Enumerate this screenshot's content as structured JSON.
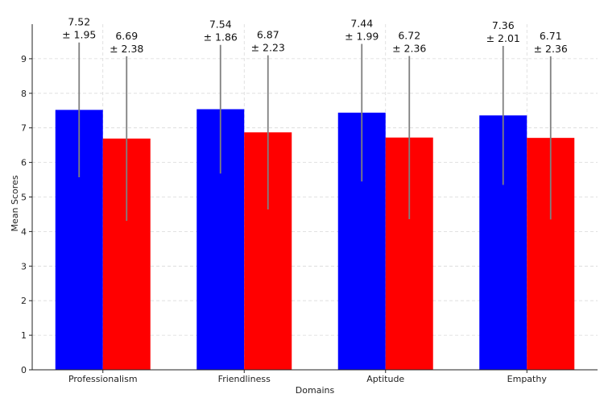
{
  "chart_data": {
    "type": "bar",
    "xlabel": "Domains",
    "ylabel": "Mean Scores",
    "ylim": [
      0,
      10
    ],
    "yticks": [
      0,
      1,
      2,
      3,
      4,
      5,
      6,
      7,
      8,
      9
    ],
    "categories": [
      "Professionalism",
      "Friendliness",
      "Aptitude",
      "Empathy"
    ],
    "series": [
      {
        "color": "#0000ff",
        "values": [
          7.52,
          7.54,
          7.44,
          7.36
        ],
        "errors": [
          1.95,
          1.86,
          1.99,
          2.01
        ],
        "value_labels": [
          "7.52",
          "7.54",
          "7.44",
          "7.36"
        ],
        "error_labels": [
          "± 1.95",
          "± 1.86",
          "± 1.99",
          "± 2.01"
        ]
      },
      {
        "color": "#ff0000",
        "values": [
          6.69,
          6.87,
          6.72,
          6.71
        ],
        "errors": [
          2.38,
          2.23,
          2.36,
          2.36
        ],
        "value_labels": [
          "6.69",
          "6.87",
          "6.72",
          "6.71"
        ],
        "error_labels": [
          "± 2.38",
          "± 2.23",
          "± 2.36",
          "± 2.36"
        ]
      }
    ],
    "error_bar_color": "#808080",
    "grid": "x and y, dashed",
    "legend": "none"
  }
}
